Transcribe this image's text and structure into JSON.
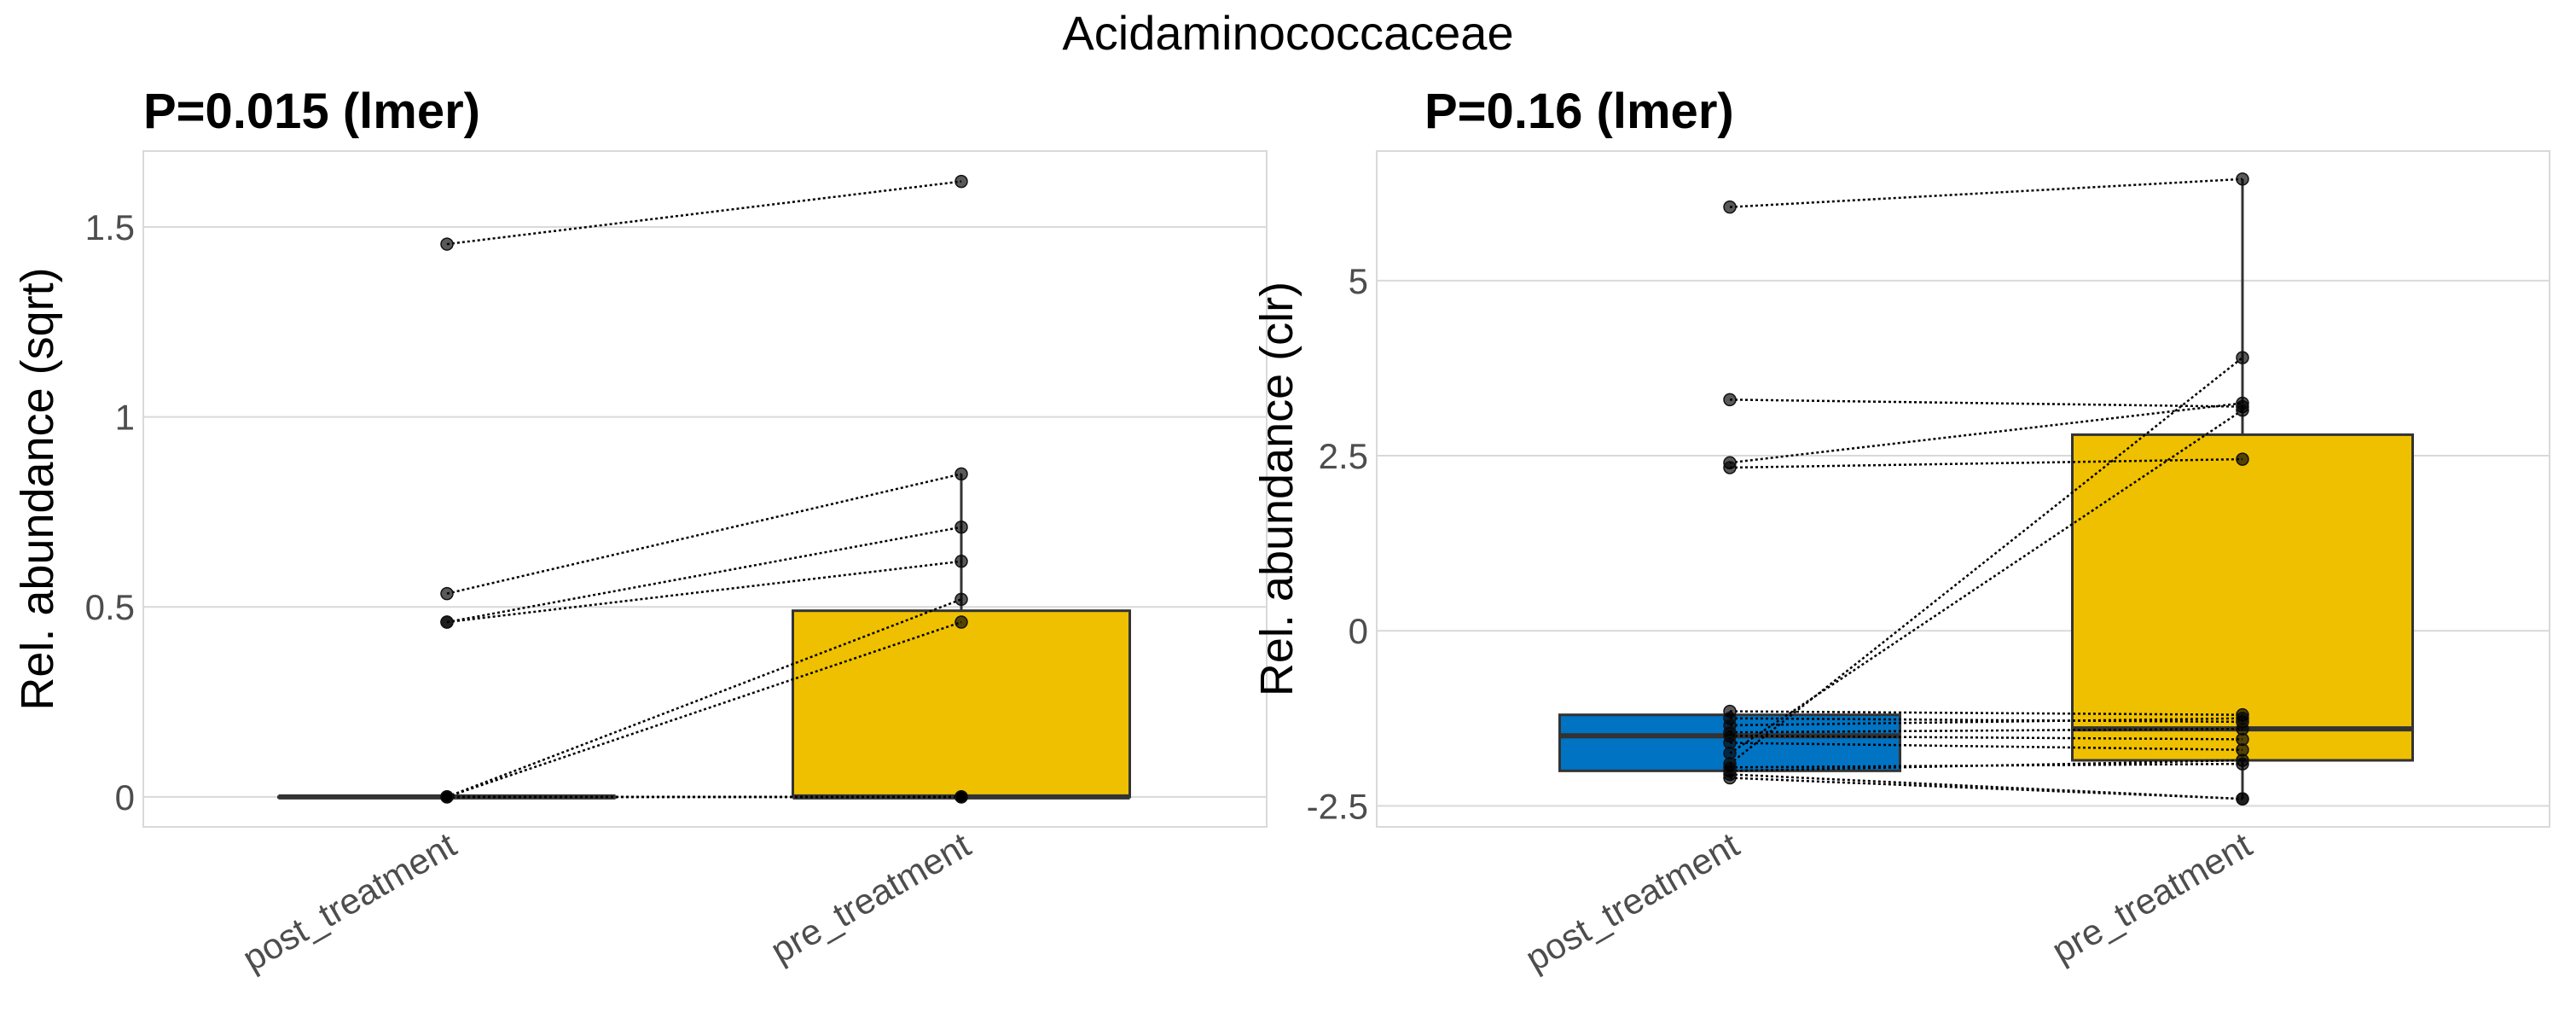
{
  "chart_data": {
    "title": "Acidaminococcaceae",
    "colors": {
      "post_treatment": "#0073C2",
      "pre_treatment": "#EFC000",
      "grid": "#d9d9d9",
      "box_line": "#333333"
    },
    "panels": [
      {
        "type": "box",
        "subtitle": "P=0.015 (lmer)",
        "ylabel": "Rel. abundance (sqrt)",
        "ylim": [
          -0.079,
          1.7
        ],
        "yticks": [
          0,
          0.5,
          1,
          1.5
        ],
        "ytick_labels": [
          "0",
          "0.5",
          "1",
          "1.5"
        ],
        "categories": [
          "post_treatment",
          "pre_treatment"
        ],
        "boxes": [
          {
            "q1": 0,
            "median": 0,
            "q3": 0,
            "whisker_low": 0,
            "whisker_high": 0
          },
          {
            "q1": 0,
            "median": 0,
            "q3": 0.49,
            "whisker_low": 0,
            "whisker_high": 0.85
          }
        ],
        "pairs": [
          [
            1.455,
            1.62
          ],
          [
            0.535,
            0.85
          ],
          [
            0.46,
            0.71
          ],
          [
            0.46,
            0.62
          ],
          [
            0,
            0.52
          ],
          [
            0,
            0.46
          ],
          [
            0,
            0
          ],
          [
            0,
            0
          ],
          [
            0,
            0
          ],
          [
            0,
            0
          ],
          [
            0,
            0
          ]
        ]
      },
      {
        "type": "box",
        "subtitle": "P=0.16 (lmer)",
        "ylabel": "Rel. abundance (clr)",
        "ylim": [
          -2.8,
          6.85
        ],
        "yticks": [
          -2.5,
          0,
          2.5,
          5
        ],
        "ytick_labels": [
          "-2.5",
          "0",
          "2.5",
          "5"
        ],
        "categories": [
          "post_treatment",
          "pre_treatment"
        ],
        "boxes": [
          {
            "q1": -2.0,
            "median": -1.5,
            "q3": -1.2,
            "whisker_low": -2.1,
            "whisker_high": -1.15
          },
          {
            "q1": -1.85,
            "median": -1.4,
            "q3": 2.8,
            "whisker_low": -2.4,
            "whisker_high": 6.45
          }
        ],
        "pairs": [
          [
            6.05,
            6.45
          ],
          [
            3.3,
            3.2
          ],
          [
            2.4,
            3.25
          ],
          [
            2.33,
            2.45
          ],
          [
            -1.9,
            3.9
          ],
          [
            -1.75,
            3.15
          ],
          [
            -1.15,
            -1.2
          ],
          [
            -1.25,
            -1.3
          ],
          [
            -1.35,
            -1.25
          ],
          [
            -1.45,
            -1.4
          ],
          [
            -1.5,
            -1.55
          ],
          [
            -1.6,
            -1.7
          ],
          [
            -2.0,
            -1.85
          ],
          [
            -2.05,
            -2.4
          ],
          [
            -2.1,
            -2.4
          ],
          [
            -1.95,
            -1.9
          ]
        ]
      }
    ]
  }
}
